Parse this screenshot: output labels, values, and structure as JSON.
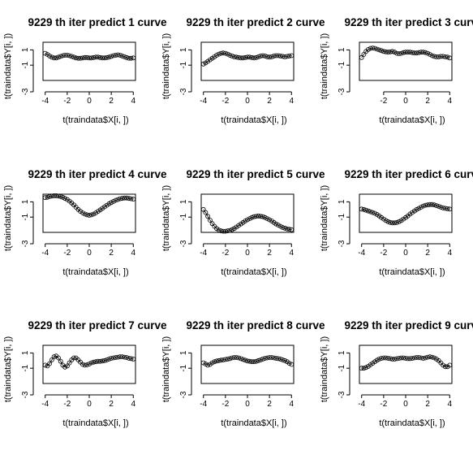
{
  "chart_data": [
    {
      "type": "scatter",
      "title": "9229 th iter  predict 1 curve",
      "xlabel": "t(traindata$X[i, ])",
      "ylabel": "t(traindata$Y[i, ])",
      "xticks": [
        "-4",
        "-2",
        "0",
        "2",
        "4"
      ],
      "yticks": [
        "1",
        "-1",
        "-3"
      ],
      "xlim": [
        -4.2,
        4.2
      ],
      "ylim": [
        -3,
        2
      ],
      "series": [
        {
          "x": [
            -4.0,
            -3.8,
            -3.6,
            -3.4,
            -3.2,
            -3.0,
            -2.8,
            -2.6,
            -2.4,
            -2.2,
            -2.0,
            -1.8,
            -1.6,
            -1.4,
            -1.2,
            -1.0,
            -0.8,
            -0.6,
            -0.4,
            -0.2,
            0.0,
            0.2,
            0.4,
            0.6,
            0.8,
            1.0,
            1.2,
            1.4,
            1.6,
            1.8,
            2.0,
            2.2,
            2.4,
            2.6,
            2.8,
            3.0,
            3.2,
            3.4,
            3.6,
            3.8,
            4.0
          ],
          "y": [
            0.55,
            0.4,
            0.2,
            0.05,
            -0.05,
            -0.05,
            0.05,
            0.15,
            0.25,
            0.3,
            0.3,
            0.25,
            0.15,
            0.05,
            -0.05,
            -0.1,
            -0.1,
            -0.05,
            0.0,
            0.0,
            -0.05,
            -0.05,
            0.0,
            0.05,
            0.05,
            0.0,
            -0.05,
            -0.05,
            0.0,
            0.05,
            0.15,
            0.25,
            0.3,
            0.35,
            0.3,
            0.2,
            0.1,
            0.0,
            -0.1,
            -0.1,
            -0.05
          ]
        }
      ]
    },
    {
      "type": "scatter",
      "title": "9229 th iter  predict 2 curve",
      "xlabel": "t(traindata$X[i, ])",
      "ylabel": "t(traindata$Y[i, ])",
      "xticks": [
        "-4",
        "-2",
        "0",
        "2",
        "4"
      ],
      "yticks": [
        "1",
        "-1",
        "-3"
      ],
      "xlim": [
        -4.2,
        4.2
      ],
      "ylim": [
        -3,
        2
      ],
      "series": [
        {
          "x": [
            -4.0,
            -3.8,
            -3.6,
            -3.4,
            -3.2,
            -3.0,
            -2.8,
            -2.6,
            -2.4,
            -2.2,
            -2.0,
            -1.8,
            -1.6,
            -1.4,
            -1.2,
            -1.0,
            -0.8,
            -0.6,
            -0.4,
            -0.2,
            0.0,
            0.2,
            0.4,
            0.6,
            0.8,
            1.0,
            1.2,
            1.4,
            1.6,
            1.8,
            2.0,
            2.2,
            2.4,
            2.6,
            2.8,
            3.0,
            3.2,
            3.4,
            3.6,
            3.8,
            4.0
          ],
          "y": [
            -0.85,
            -0.7,
            -0.5,
            -0.3,
            -0.1,
            0.1,
            0.3,
            0.45,
            0.55,
            0.6,
            0.55,
            0.45,
            0.3,
            0.2,
            0.1,
            0.05,
            0.0,
            -0.05,
            -0.05,
            0.0,
            0.05,
            0.05,
            0.0,
            -0.05,
            0.0,
            0.1,
            0.2,
            0.25,
            0.2,
            0.1,
            0.05,
            0.1,
            0.2,
            0.25,
            0.25,
            0.2,
            0.15,
            0.1,
            0.15,
            0.2,
            0.25
          ]
        }
      ]
    },
    {
      "type": "scatter",
      "title": "9229 th iter  predict 3 curve",
      "xlabel": "t(traindata$X[i, ])",
      "ylabel": "t(traindata$Y[i, ])",
      "xticks": [
        "-2",
        "0",
        "2",
        "4"
      ],
      "yticks": [
        "1",
        "-1",
        "-3"
      ],
      "xlim": [
        -4.2,
        4.2
      ],
      "ylim": [
        -3,
        2
      ],
      "series": [
        {
          "x": [
            -4.0,
            -3.8,
            -3.6,
            -3.4,
            -3.2,
            -3.0,
            -2.8,
            -2.6,
            -2.4,
            -2.2,
            -2.0,
            -1.8,
            -1.6,
            -1.4,
            -1.2,
            -1.0,
            -0.8,
            -0.6,
            -0.4,
            -0.2,
            0.0,
            0.2,
            0.4,
            0.6,
            0.8,
            1.0,
            1.2,
            1.4,
            1.6,
            1.8,
            2.0,
            2.2,
            2.4,
            2.6,
            2.8,
            3.0,
            3.2,
            3.4,
            3.6,
            3.8,
            4.0
          ],
          "y": [
            0.0,
            0.4,
            0.8,
            1.05,
            1.2,
            1.25,
            1.2,
            1.1,
            1.0,
            0.9,
            0.8,
            0.75,
            0.7,
            0.75,
            0.8,
            0.7,
            0.55,
            0.5,
            0.55,
            0.65,
            0.7,
            0.7,
            0.7,
            0.65,
            0.6,
            0.6,
            0.65,
            0.7,
            0.7,
            0.65,
            0.55,
            0.4,
            0.25,
            0.15,
            0.1,
            0.1,
            0.15,
            0.15,
            0.1,
            0.05,
            -0.05
          ]
        }
      ]
    },
    {
      "type": "scatter",
      "title": "9229 th iter  predict 4 curve",
      "xlabel": "t(traindata$X[i, ])",
      "ylabel": "t(traindata$Y[i, ])",
      "xticks": [
        "-4",
        "-2",
        "0",
        "2",
        "4"
      ],
      "yticks": [
        "1",
        "-1",
        "-3"
      ],
      "xlim": [
        -4.2,
        4.2
      ],
      "ylim": [
        -3,
        2
      ],
      "series": [
        {
          "x": [
            -4.0,
            -3.8,
            -3.6,
            -3.4,
            -3.2,
            -3.0,
            -2.8,
            -2.6,
            -2.4,
            -2.2,
            -2.0,
            -1.8,
            -1.6,
            -1.4,
            -1.2,
            -1.0,
            -0.8,
            -0.6,
            -0.4,
            -0.2,
            0.0,
            0.2,
            0.4,
            0.6,
            0.8,
            1.0,
            1.2,
            1.4,
            1.6,
            1.8,
            2.0,
            2.2,
            2.4,
            2.6,
            2.8,
            3.0,
            3.2,
            3.4,
            3.6,
            3.8,
            4.0
          ],
          "y": [
            1.55,
            1.6,
            1.7,
            1.75,
            1.8,
            1.8,
            1.75,
            1.7,
            1.6,
            1.45,
            1.3,
            1.1,
            0.85,
            0.6,
            0.3,
            0.0,
            -0.25,
            -0.45,
            -0.6,
            -0.7,
            -0.75,
            -0.7,
            -0.6,
            -0.45,
            -0.25,
            -0.05,
            0.15,
            0.35,
            0.55,
            0.75,
            0.9,
            1.05,
            1.2,
            1.3,
            1.4,
            1.45,
            1.5,
            1.5,
            1.45,
            1.4,
            1.35
          ]
        }
      ]
    },
    {
      "type": "scatter",
      "title": "9229 th iter  predict 5 curve",
      "xlabel": "t(traindata$X[i, ])",
      "ylabel": "t(traindata$Y[i, ])",
      "xticks": [
        "-4",
        "-2",
        "0",
        "2",
        "4"
      ],
      "yticks": [
        "1",
        "-1",
        "-3"
      ],
      "xlim": [
        -4.2,
        4.2
      ],
      "ylim": [
        -3,
        2
      ],
      "series": [
        {
          "x": [
            -4.0,
            -3.8,
            -3.6,
            -3.4,
            -3.2,
            -3.0,
            -2.8,
            -2.6,
            -2.4,
            -2.2,
            -2.0,
            -1.8,
            -1.6,
            -1.4,
            -1.2,
            -1.0,
            -0.8,
            -0.6,
            -0.4,
            -0.2,
            0.0,
            0.2,
            0.4,
            0.6,
            0.8,
            1.0,
            1.2,
            1.4,
            1.6,
            1.8,
            2.0,
            2.2,
            2.4,
            2.6,
            2.8,
            3.0,
            3.2,
            3.4,
            3.6,
            3.8,
            4.0
          ],
          "y": [
            0.0,
            -0.4,
            -0.9,
            -1.4,
            -1.85,
            -2.2,
            -2.5,
            -2.7,
            -2.8,
            -2.85,
            -2.85,
            -2.8,
            -2.75,
            -2.65,
            -2.5,
            -2.3,
            -2.1,
            -1.9,
            -1.7,
            -1.5,
            -1.35,
            -1.2,
            -1.05,
            -0.95,
            -0.9,
            -0.85,
            -0.9,
            -0.95,
            -1.05,
            -1.2,
            -1.35,
            -1.5,
            -1.7,
            -1.9,
            -2.05,
            -2.2,
            -2.35,
            -2.45,
            -2.55,
            -2.6,
            -2.65
          ]
        }
      ]
    },
    {
      "type": "scatter",
      "title": "9229 th iter  predict 6 curve",
      "xlabel": "t(traindata$X[i, ])",
      "ylabel": "t(traindata$Y[i, ])",
      "xticks": [
        "-4",
        "-2",
        "0",
        "2",
        "4"
      ],
      "yticks": [
        "1",
        "-1",
        "-3"
      ],
      "xlim": [
        -4.2,
        4.2
      ],
      "ylim": [
        -3,
        2
      ],
      "series": [
        {
          "x": [
            -4.0,
            -3.8,
            -3.6,
            -3.4,
            -3.2,
            -3.0,
            -2.8,
            -2.6,
            -2.4,
            -2.2,
            -2.0,
            -1.8,
            -1.6,
            -1.4,
            -1.2,
            -1.0,
            -0.8,
            -0.6,
            -0.4,
            -0.2,
            0.0,
            0.2,
            0.4,
            0.6,
            0.8,
            1.0,
            1.2,
            1.4,
            1.6,
            1.8,
            2.0,
            2.2,
            2.4,
            2.6,
            2.8,
            3.0,
            3.2,
            3.4,
            3.6,
            3.8,
            4.0
          ],
          "y": [
            0.05,
            0.0,
            -0.1,
            -0.2,
            -0.3,
            -0.4,
            -0.5,
            -0.65,
            -0.85,
            -1.05,
            -1.25,
            -1.45,
            -1.6,
            -1.7,
            -1.75,
            -1.75,
            -1.7,
            -1.6,
            -1.45,
            -1.25,
            -1.05,
            -0.85,
            -0.6,
            -0.4,
            -0.2,
            0.0,
            0.15,
            0.3,
            0.45,
            0.55,
            0.6,
            0.65,
            0.65,
            0.6,
            0.5,
            0.4,
            0.3,
            0.2,
            0.15,
            0.1,
            0.05
          ]
        }
      ]
    },
    {
      "type": "scatter",
      "title": "9229 th iter  predict 7 curve",
      "xlabel": "t(traindata$X[i, ])",
      "ylabel": "t(traindata$Y[i, ])",
      "xticks": [
        "-4",
        "-2",
        "0",
        "2",
        "4"
      ],
      "yticks": [
        "1",
        "-1",
        "-3"
      ],
      "xlim": [
        -4.2,
        4.2
      ],
      "ylim": [
        -3,
        2
      ],
      "series": [
        {
          "x": [
            -4.0,
            -3.8,
            -3.6,
            -3.4,
            -3.2,
            -3.0,
            -2.8,
            -2.6,
            -2.4,
            -2.2,
            -2.0,
            -1.8,
            -1.6,
            -1.4,
            -1.2,
            -1.0,
            -0.8,
            -0.6,
            -0.4,
            -0.2,
            0.0,
            0.2,
            0.4,
            0.6,
            0.8,
            1.0,
            1.2,
            1.4,
            1.6,
            1.8,
            2.0,
            2.2,
            2.4,
            2.6,
            2.8,
            3.0,
            3.2,
            3.4,
            3.6,
            3.8,
            4.0
          ],
          "y": [
            -0.6,
            -0.7,
            -0.4,
            0.1,
            0.5,
            0.6,
            0.35,
            -0.1,
            -0.6,
            -0.85,
            -0.7,
            -0.3,
            0.1,
            0.35,
            0.35,
            0.1,
            -0.2,
            -0.5,
            -0.6,
            -0.55,
            -0.45,
            -0.3,
            -0.2,
            -0.15,
            -0.1,
            -0.1,
            -0.05,
            0.0,
            0.1,
            0.2,
            0.3,
            0.35,
            0.4,
            0.45,
            0.5,
            0.5,
            0.45,
            0.4,
            0.3,
            0.25,
            0.2
          ]
        }
      ]
    },
    {
      "type": "scatter",
      "title": "9229 th iter  predict 8 curve",
      "xlabel": "t(traindata$X[i, ])",
      "ylabel": "t(traindata$Y[i, ])",
      "xticks": [
        "-4",
        "-2",
        "0",
        "2",
        "4"
      ],
      "yticks": [
        "1",
        "-1",
        "-3"
      ],
      "xlim": [
        -4.2,
        4.2
      ],
      "ylim": [
        -3,
        2
      ],
      "series": [
        {
          "x": [
            -4.0,
            -3.8,
            -3.6,
            -3.4,
            -3.2,
            -3.0,
            -2.8,
            -2.6,
            -2.4,
            -2.2,
            -2.0,
            -1.8,
            -1.6,
            -1.4,
            -1.2,
            -1.0,
            -0.8,
            -0.6,
            -0.4,
            -0.2,
            0.0,
            0.2,
            0.4,
            0.6,
            0.8,
            1.0,
            1.2,
            1.4,
            1.6,
            1.8,
            2.0,
            2.2,
            2.4,
            2.6,
            2.8,
            3.0,
            3.2,
            3.4,
            3.6,
            3.8,
            4.0
          ],
          "y": [
            -0.3,
            -0.45,
            -0.6,
            -0.5,
            -0.3,
            -0.15,
            -0.05,
            0.0,
            0.05,
            0.1,
            0.15,
            0.2,
            0.25,
            0.35,
            0.4,
            0.4,
            0.35,
            0.25,
            0.15,
            0.05,
            -0.05,
            -0.1,
            -0.15,
            -0.15,
            -0.1,
            0.0,
            0.1,
            0.2,
            0.3,
            0.35,
            0.4,
            0.4,
            0.35,
            0.3,
            0.25,
            0.2,
            0.1,
            0.0,
            -0.15,
            -0.35,
            -0.5
          ]
        }
      ]
    },
    {
      "type": "scatter",
      "title": "9229 th iter  predict 9 curve",
      "xlabel": "t(traindata$X[i, ])",
      "ylabel": "t(traindata$Y[i, ])",
      "xticks": [
        "-4",
        "-2",
        "0",
        "2",
        "4"
      ],
      "yticks": [
        "1",
        "-1",
        "-3"
      ],
      "xlim": [
        -4.2,
        4.2
      ],
      "ylim": [
        -3,
        2
      ],
      "series": [
        {
          "x": [
            -4.0,
            -3.8,
            -3.6,
            -3.4,
            -3.2,
            -3.0,
            -2.8,
            -2.6,
            -2.4,
            -2.2,
            -2.0,
            -1.8,
            -1.6,
            -1.4,
            -1.2,
            -1.0,
            -0.8,
            -0.6,
            -0.4,
            -0.2,
            0.0,
            0.2,
            0.4,
            0.6,
            0.8,
            1.0,
            1.2,
            1.4,
            1.6,
            1.8,
            2.0,
            2.2,
            2.4,
            2.6,
            2.8,
            3.0,
            3.2,
            3.4,
            3.6,
            3.8,
            4.0
          ],
          "y": [
            -1.0,
            -1.0,
            -0.9,
            -0.75,
            -0.55,
            -0.35,
            -0.15,
            0.05,
            0.2,
            0.3,
            0.35,
            0.35,
            0.3,
            0.25,
            0.2,
            0.2,
            0.25,
            0.3,
            0.35,
            0.35,
            0.3,
            0.25,
            0.25,
            0.3,
            0.35,
            0.4,
            0.4,
            0.35,
            0.3,
            0.35,
            0.45,
            0.5,
            0.45,
            0.35,
            0.2,
            0.0,
            -0.3,
            -0.6,
            -0.8,
            -0.8,
            -0.6
          ]
        }
      ]
    }
  ]
}
